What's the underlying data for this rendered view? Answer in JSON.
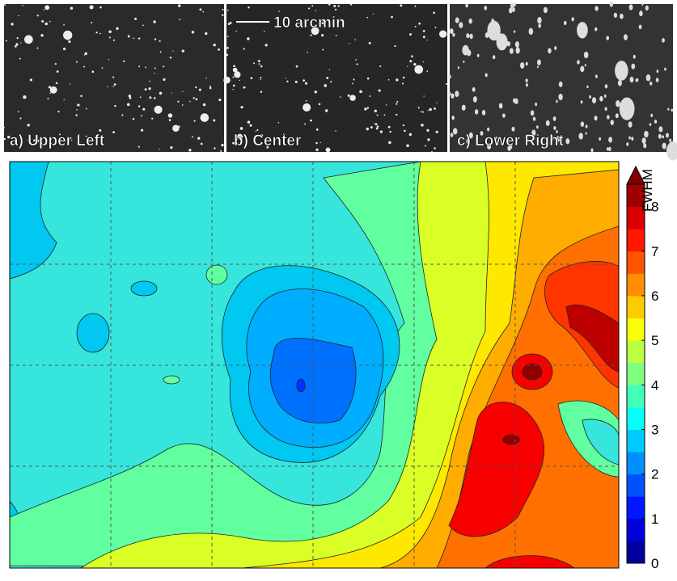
{
  "panels": [
    {
      "label": "a) Upper Left"
    },
    {
      "label": "b) Center"
    },
    {
      "label": "c) Lower Right"
    }
  ],
  "scale_bar": "10 arcmin",
  "colorbar": {
    "label": "FWHM",
    "lim": [
      0,
      8.5
    ],
    "ticks": [
      0,
      1,
      2,
      3,
      4,
      5,
      6,
      7,
      8
    ]
  }
}
